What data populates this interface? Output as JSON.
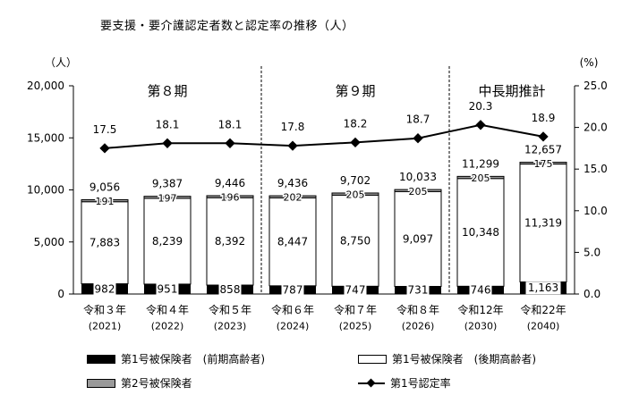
{
  "title": "要支援・要介護認定者数と認定率の推移（人）",
  "chart_data": {
    "type": "bar",
    "stacked": true,
    "categories": [
      "令和３年",
      "令和４年",
      "令和５年",
      "令和６年",
      "令和７年",
      "令和８年",
      "令和12年",
      "令和22年"
    ],
    "category_years": [
      "(2021)",
      "(2022)",
      "(2023)",
      "(2024)",
      "(2025)",
      "(2026)",
      "(2030)",
      "(2040)"
    ],
    "series": [
      {
        "name": "第1号被保険者（前期高齢者）",
        "values": [
          982,
          951,
          858,
          787,
          747,
          731,
          746,
          1163
        ],
        "value_labels": [
          "982",
          "951",
          "858",
          "787",
          "747",
          "731",
          "746",
          "1,163"
        ]
      },
      {
        "name": "第1号被保険者（後期高齢者）",
        "values": [
          7883,
          8239,
          8392,
          8447,
          8750,
          9097,
          10348,
          11319
        ],
        "value_labels": [
          "7,883",
          "8,239",
          "8,392",
          "8,447",
          "8,750",
          "9,097",
          "10,348",
          "11,319"
        ]
      },
      {
        "name": "第2号被保険者",
        "values": [
          191,
          197,
          196,
          202,
          205,
          205,
          205,
          175
        ],
        "value_labels": [
          "191",
          "197",
          "196",
          "202",
          "205",
          "205",
          "205",
          "175"
        ]
      }
    ],
    "totals": [
      9056,
      9387,
      9446,
      9436,
      9702,
      10033,
      11299,
      12657
    ],
    "total_labels": [
      "9,056",
      "9,387",
      "9,446",
      "9,436",
      "9,702",
      "10,033",
      "11,299",
      "12,657"
    ],
    "line_series": {
      "name": "第1号認定率",
      "values": [
        17.5,
        18.1,
        18.1,
        17.8,
        18.2,
        18.7,
        20.3,
        18.9
      ],
      "value_labels": [
        "17.5",
        "18.1",
        "18.1",
        "17.8",
        "18.2",
        "18.7",
        "20.3",
        "18.9"
      ]
    },
    "y_left": {
      "unit": "（人）",
      "range": [
        0,
        20000
      ],
      "ticks": [
        "0",
        "5,000",
        "10,000",
        "15,000",
        "20,000"
      ]
    },
    "y_right": {
      "unit": "(%)",
      "range": [
        0,
        25
      ],
      "ticks": [
        "0.0",
        "5.0",
        "10.0",
        "15.0",
        "20.0",
        "25.0"
      ]
    },
    "periods": [
      {
        "label": "第８期",
        "from": 0,
        "to": 2
      },
      {
        "label": "第９期",
        "from": 3,
        "to": 5
      },
      {
        "label": "中長期推計",
        "from": 6,
        "to": 7
      }
    ],
    "grid": false,
    "legend_position": "bottom"
  },
  "legend": {
    "early_elderly": "第1号被保険者　(前期高齢者)",
    "late_elderly": "第1号被保険者　(後期高齢者)",
    "secondary": "第2号被保険者",
    "rate": "第1号認定率"
  }
}
